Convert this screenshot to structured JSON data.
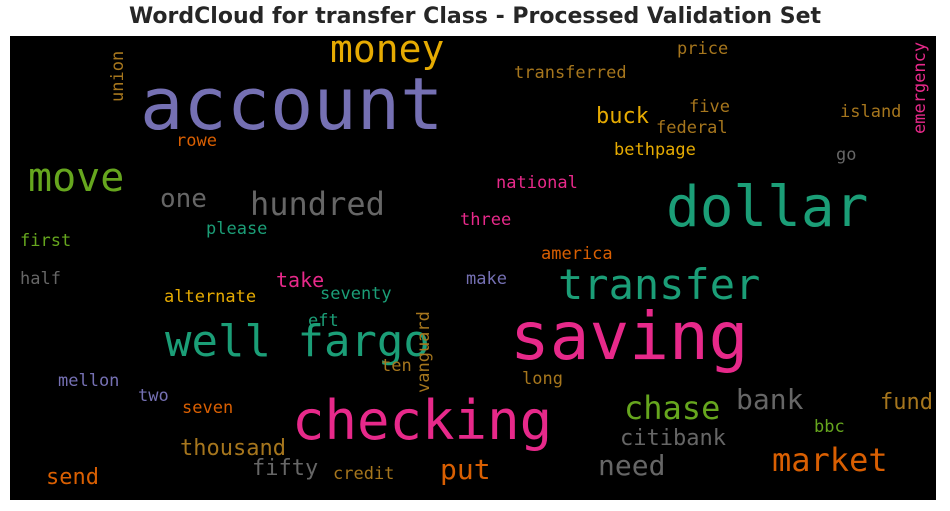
{
  "chart_data": {
    "type": "wordcloud",
    "title": "WordCloud for transfer Class - Processed Validation Set",
    "background": "#000000",
    "words": [
      {
        "text": "account",
        "color": "#7570b3"
      },
      {
        "text": "saving",
        "color": "#e7298a"
      },
      {
        "text": "checking",
        "color": "#e7298a"
      },
      {
        "text": "dollar",
        "color": "#1b9e77"
      },
      {
        "text": "transfer",
        "color": "#1b9e77"
      },
      {
        "text": "well fargo",
        "color": "#1b9e77"
      },
      {
        "text": "money",
        "color": "#e6ab02"
      },
      {
        "text": "move",
        "color": "#66a61e"
      },
      {
        "text": "market",
        "color": "#d95f02"
      },
      {
        "text": "hundred",
        "color": "#666666"
      },
      {
        "text": "chase",
        "color": "#66a61e"
      },
      {
        "text": "need",
        "color": "#666666"
      },
      {
        "text": "bank",
        "color": "#666666"
      },
      {
        "text": "put",
        "color": "#d95f02"
      },
      {
        "text": "one",
        "color": "#666666"
      },
      {
        "text": "thousand",
        "color": "#a6761d"
      },
      {
        "text": "fifty",
        "color": "#666666"
      },
      {
        "text": "citibank",
        "color": "#666666"
      },
      {
        "text": "fund",
        "color": "#a6761d"
      },
      {
        "text": "buck",
        "color": "#e6ab02"
      },
      {
        "text": "send",
        "color": "#d95f02"
      },
      {
        "text": "take",
        "color": "#e7298a"
      },
      {
        "text": "transferred",
        "color": "#a6761d"
      },
      {
        "text": "price",
        "color": "#a6761d"
      },
      {
        "text": "five",
        "color": "#a6761d"
      },
      {
        "text": "federal",
        "color": "#a6761d"
      },
      {
        "text": "island",
        "color": "#a6761d"
      },
      {
        "text": "bethpage",
        "color": "#e6ab02"
      },
      {
        "text": "go",
        "color": "#666666"
      },
      {
        "text": "rowe",
        "color": "#d95f02"
      },
      {
        "text": "national",
        "color": "#e7298a"
      },
      {
        "text": "three",
        "color": "#e7298a"
      },
      {
        "text": "please",
        "color": "#1b9e77"
      },
      {
        "text": "first",
        "color": "#66a61e"
      },
      {
        "text": "half",
        "color": "#666666"
      },
      {
        "text": "america",
        "color": "#d95f02"
      },
      {
        "text": "make",
        "color": "#7570b3"
      },
      {
        "text": "alternate",
        "color": "#e6ab02"
      },
      {
        "text": "seventy",
        "color": "#1b9e77"
      },
      {
        "text": "eft",
        "color": "#1b9e77"
      },
      {
        "text": "ten",
        "color": "#a6761d"
      },
      {
        "text": "long",
        "color": "#a6761d"
      },
      {
        "text": "mellon",
        "color": "#7570b3"
      },
      {
        "text": "two",
        "color": "#7570b3"
      },
      {
        "text": "seven",
        "color": "#d95f02"
      },
      {
        "text": "bbc",
        "color": "#66a61e"
      },
      {
        "text": "credit",
        "color": "#a6761d"
      },
      {
        "text": "union",
        "color": "#a6761d"
      },
      {
        "text": "emergency",
        "color": "#e7298a"
      },
      {
        "text": "vanguard",
        "color": "#a6761d"
      }
    ]
  }
}
